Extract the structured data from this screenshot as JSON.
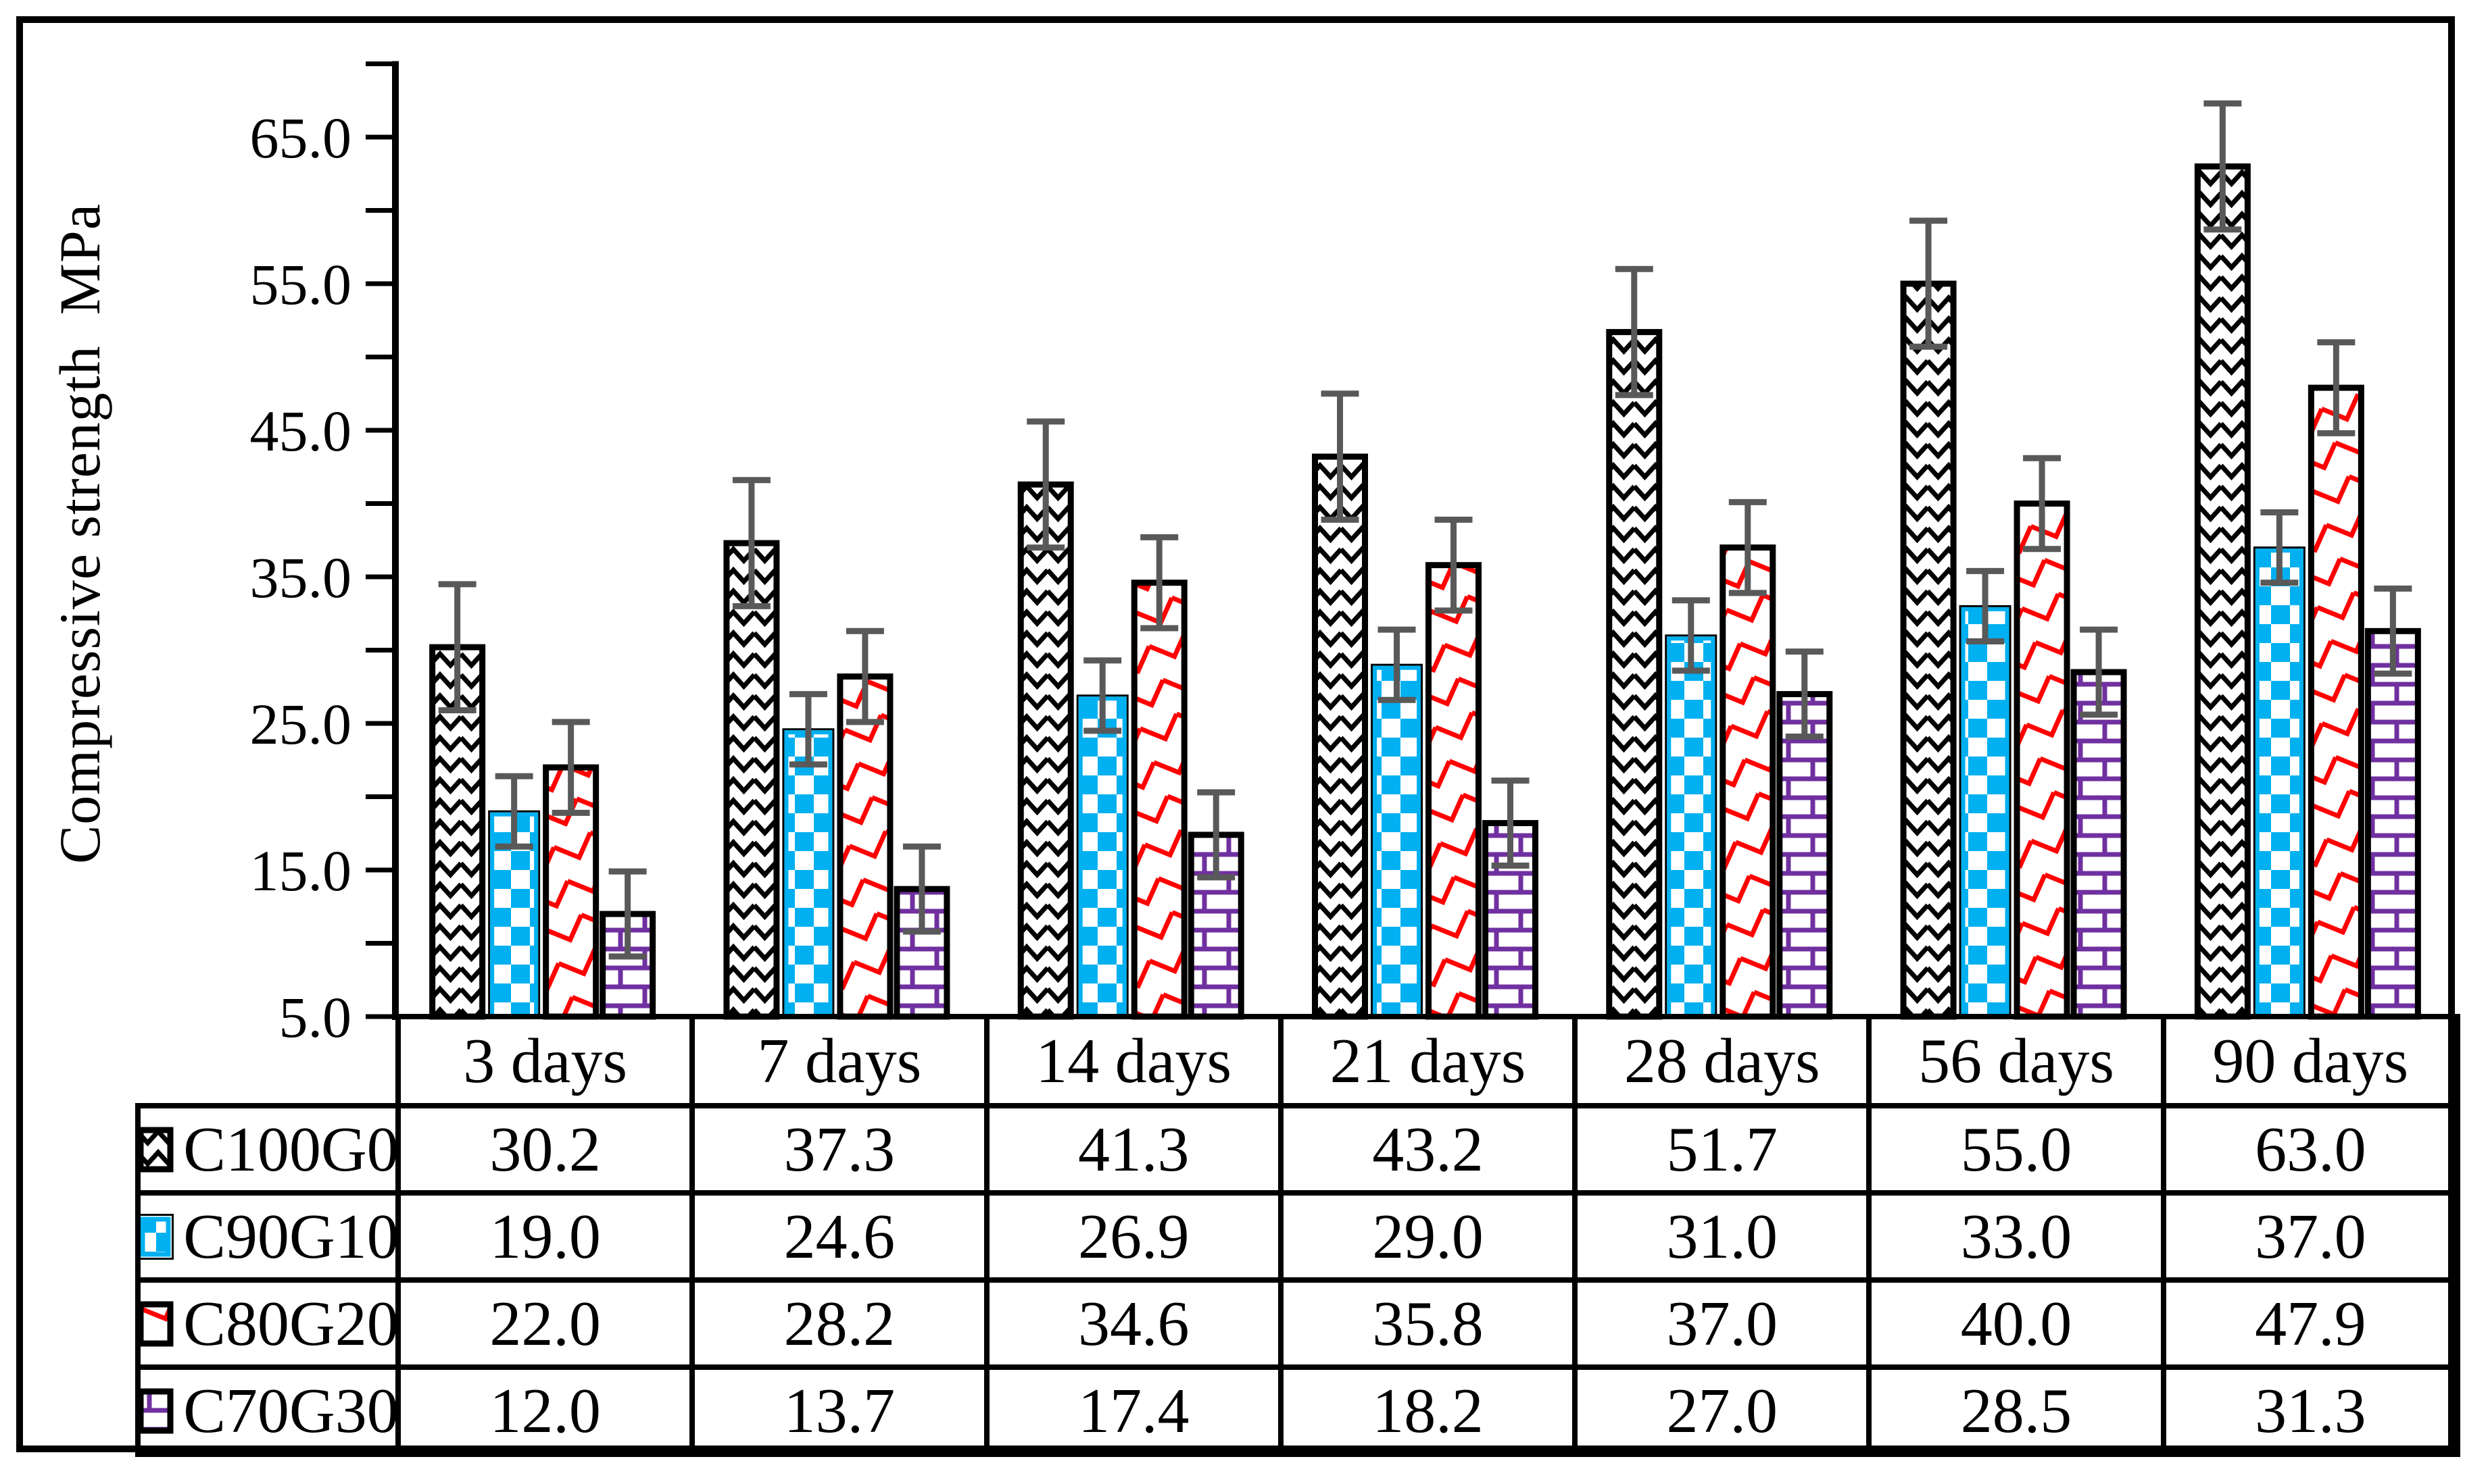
{
  "figure": {
    "background": "#ffffff",
    "border_color": "#000000"
  },
  "chart_data": {
    "type": "bar",
    "title": "",
    "ylabel": "Compressive strength  MPa",
    "xlabel": "",
    "categories": [
      "3 days",
      "7 days",
      "14 days",
      "21 days",
      "28 days",
      "56 days",
      "90 days"
    ],
    "series": [
      {
        "name": "C100G0",
        "pattern": "wave",
        "pattern_color": "#000000",
        "border_color": "#000000",
        "values": [
          30.2,
          37.3,
          41.3,
          43.2,
          51.7,
          55.0,
          63.0
        ],
        "error": 4.3
      },
      {
        "name": "C90G10",
        "pattern": "checker",
        "pattern_color": "#00B0F0",
        "border_color": "#00B0F0",
        "values": [
          19.0,
          24.6,
          26.9,
          29.0,
          31.0,
          33.0,
          37.0
        ],
        "error": 2.4
      },
      {
        "name": "C80G20",
        "pattern": "scale",
        "pattern_color": "#FF0000",
        "border_color": "#000000",
        "values": [
          22.0,
          28.2,
          34.6,
          35.8,
          37.0,
          40.0,
          47.9
        ],
        "error": 3.1
      },
      {
        "name": "C70G30",
        "pattern": "brick",
        "pattern_color": "#7030A0",
        "border_color": "#000000",
        "values": [
          12.0,
          13.7,
          17.4,
          18.2,
          27.0,
          28.5,
          31.3
        ],
        "error": 2.9
      }
    ],
    "ylim": [
      5,
      70
    ],
    "ytick_step": 5,
    "ytick_labels": [
      "5.0",
      "15.0",
      "25.0",
      "35.0",
      "45.0",
      "55.0",
      "65.0"
    ],
    "ytick_label_values": [
      5,
      15,
      25,
      35,
      45,
      55,
      65
    ],
    "grid": false,
    "legend_position": "table-rows-left",
    "error_bar_color": "#595959"
  }
}
